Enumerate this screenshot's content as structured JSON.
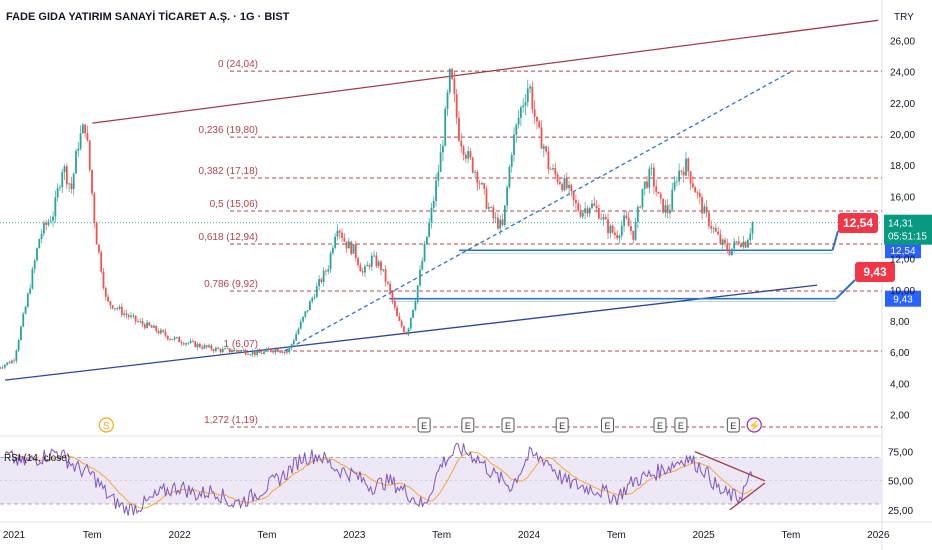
{
  "header": {
    "title": "FADE GIDA YATIRIM SANAYİ TİCARET A.Ş. · 1G · BIST",
    "currency": "TRY"
  },
  "price_badge": {
    "price": "14,31",
    "countdown": "05:51:15"
  },
  "rsi_label": "RSI (14, close)",
  "colors": {
    "up": "#26a69a",
    "down": "#ef5350",
    "fib": "#b2444f",
    "channel_top": "#9e3d47",
    "channel_bottom": "#2f4694",
    "blue_level": "#2e73c9",
    "rsi_line": "#7e57c2",
    "rsi_ma": "#f2a93b",
    "rsi_band": "#ede7f6",
    "badge_green": "#089981",
    "badge_red": "#f23645",
    "badge_blue": "#2962ff"
  },
  "chart_data": [
    {
      "type": "line",
      "title": "",
      "xlabel": "",
      "ylabel": "",
      "x_ticks": [
        "2021",
        "Tem",
        "2022",
        "Tem",
        "2023",
        "Tem",
        "2024",
        "Tem",
        "2025",
        "Tem",
        "2026"
      ],
      "y_ticks": [
        "2,00",
        "4,00",
        "6,00",
        "8,00",
        "10,00",
        "12,00",
        "14,00",
        "16,00",
        "18,00",
        "20,00",
        "22,00",
        "24,00",
        "26,00"
      ],
      "ylim": [
        1,
        27
      ],
      "x_range": [
        2021.0,
        2026.05
      ],
      "grid": false,
      "series": [
        {
          "x": [
            2020.96,
            2021.05,
            2021.12,
            2021.2,
            2021.28,
            2021.33,
            2021.38,
            2021.42,
            2021.46,
            2021.5,
            2021.52,
            2021.55,
            2021.58,
            2021.62,
            2021.68,
            2021.75,
            2021.85,
            2021.95,
            2022.05,
            2022.15,
            2022.25,
            2022.35,
            2022.45,
            2022.55,
            2022.62,
            2022.7,
            2022.78,
            2022.85,
            2022.9,
            2022.95,
            2023.0,
            2023.05,
            2023.1,
            2023.15,
            2023.2,
            2023.25,
            2023.3,
            2023.35,
            2023.4,
            2023.45,
            2023.5,
            2023.55,
            2023.6,
            2023.65,
            2023.7,
            2023.73,
            2023.76,
            2023.8,
            2023.85,
            2023.9,
            2023.95,
            2024.0,
            2024.05,
            2024.08,
            2024.11,
            2024.14,
            2024.18,
            2024.22,
            2024.26,
            2024.3,
            2024.35,
            2024.4,
            2024.45,
            2024.5,
            2024.55,
            2024.6,
            2024.65,
            2024.7,
            2024.75,
            2024.8,
            2024.85,
            2024.9,
            2024.95,
            2025.0,
            2025.05,
            2025.1,
            2025.15,
            2025.2,
            2025.24,
            2025.28
          ],
          "y": [
            5.0,
            5.5,
            9.0,
            13.5,
            15.0,
            18.0,
            16.5,
            19.5,
            20.6,
            16.0,
            13.5,
            11.5,
            9.2,
            9.0,
            8.5,
            8.0,
            7.5,
            6.9,
            6.6,
            6.3,
            6.1,
            6.1,
            5.9,
            6.2,
            6.0,
            8.0,
            10.0,
            11.5,
            14.3,
            13.0,
            12.5,
            11.0,
            12.0,
            11.5,
            10.0,
            8.0,
            7.2,
            9.5,
            12.5,
            15.5,
            19.0,
            23.9,
            20.0,
            18.5,
            17.5,
            16.5,
            15.5,
            14.5,
            14.0,
            19.0,
            21.5,
            23.3,
            20.0,
            19.5,
            18.0,
            17.5,
            17.0,
            16.5,
            15.5,
            15.0,
            15.5,
            15.0,
            14.0,
            13.5,
            14.5,
            13.5,
            16.5,
            17.5,
            15.5,
            15.0,
            17.5,
            18.0,
            16.5,
            15.0,
            14.0,
            13.0,
            12.5,
            13.2,
            13.0,
            14.3
          ]
        }
      ],
      "fib_levels": [
        {
          "label": "0 (24,04)",
          "value": 24.04
        },
        {
          "label": "0,236 (19,80)",
          "value": 19.8
        },
        {
          "label": "0,382 (17,18)",
          "value": 17.18
        },
        {
          "label": "0,5 (15,06)",
          "value": 15.06
        },
        {
          "label": "0,618 (12,94)",
          "value": 12.94
        },
        {
          "label": "0,786 (9,92)",
          "value": 9.92
        },
        {
          "label": "1 (6,07)",
          "value": 6.07
        },
        {
          "label": "1,272 (1,19)",
          "value": 1.19
        }
      ],
      "horizontal_levels": [
        {
          "label": "12,54",
          "value": 12.54,
          "x_start": 2023.6,
          "x_end": 2025.28,
          "callout_label": "12,54"
        },
        {
          "label": "9,43",
          "value": 9.43,
          "x_start": 2023.2,
          "x_end": 2025.3,
          "callout_label": "9,43"
        }
      ],
      "trendlines": [
        {
          "name": "channel-top",
          "x1": 2021.5,
          "y1": 20.7,
          "x2": 2026.0,
          "y2": 27.3
        },
        {
          "name": "channel-bottom",
          "x1": 2021.0,
          "y1": 4.2,
          "x2": 2025.65,
          "y2": 10.3
        },
        {
          "name": "diagonal-dashed",
          "x1": 2022.6,
          "y1": 6.07,
          "x2": 2025.5,
          "y2": 24.0
        }
      ],
      "event_markers": [
        {
          "label": "S",
          "x": 2021.58
        },
        {
          "label": "E",
          "x": 2023.4
        },
        {
          "label": "E",
          "x": 2023.65
        },
        {
          "label": "E",
          "x": 2023.88
        },
        {
          "label": "E",
          "x": 2024.19
        },
        {
          "label": "E",
          "x": 2024.45
        },
        {
          "label": "E",
          "x": 2024.75
        },
        {
          "label": "E",
          "x": 2024.87
        },
        {
          "label": "E",
          "x": 2025.17
        },
        {
          "label": "⚡",
          "x": 2025.29
        }
      ],
      "current_price": 14.31
    },
    {
      "type": "line",
      "title": "RSI (14, close)",
      "y_ticks": [
        "25,00",
        "50,00",
        "75,00"
      ],
      "ylim": [
        18,
        85
      ],
      "bands": [
        30,
        70
      ],
      "midline": 50,
      "series": [
        {
          "name": "RSI",
          "x": [
            2021.0,
            2021.1,
            2021.2,
            2021.3,
            2021.4,
            2021.5,
            2021.6,
            2021.7,
            2021.8,
            2021.9,
            2022.0,
            2022.1,
            2022.2,
            2022.3,
            2022.4,
            2022.5,
            2022.6,
            2022.7,
            2022.8,
            2022.9,
            2023.0,
            2023.1,
            2023.2,
            2023.3,
            2023.4,
            2023.5,
            2023.6,
            2023.7,
            2023.8,
            2023.9,
            2024.0,
            2024.1,
            2024.2,
            2024.3,
            2024.4,
            2024.5,
            2024.6,
            2024.7,
            2024.8,
            2024.9,
            2025.0,
            2025.1,
            2025.2,
            2025.28
          ],
          "y": [
            72,
            65,
            70,
            75,
            62,
            55,
            35,
            25,
            30,
            40,
            45,
            38,
            42,
            30,
            35,
            45,
            55,
            70,
            72,
            60,
            55,
            45,
            50,
            40,
            28,
            65,
            78,
            70,
            55,
            45,
            72,
            68,
            50,
            45,
            42,
            35,
            50,
            55,
            62,
            70,
            60,
            40,
            35,
            55
          ]
        }
      ],
      "trendlines": [
        {
          "x1": 2024.95,
          "y1": 75,
          "x2": 2025.35,
          "y2": 50
        },
        {
          "x1": 2025.15,
          "y1": 25,
          "x2": 2025.35,
          "y2": 48
        }
      ]
    }
  ]
}
